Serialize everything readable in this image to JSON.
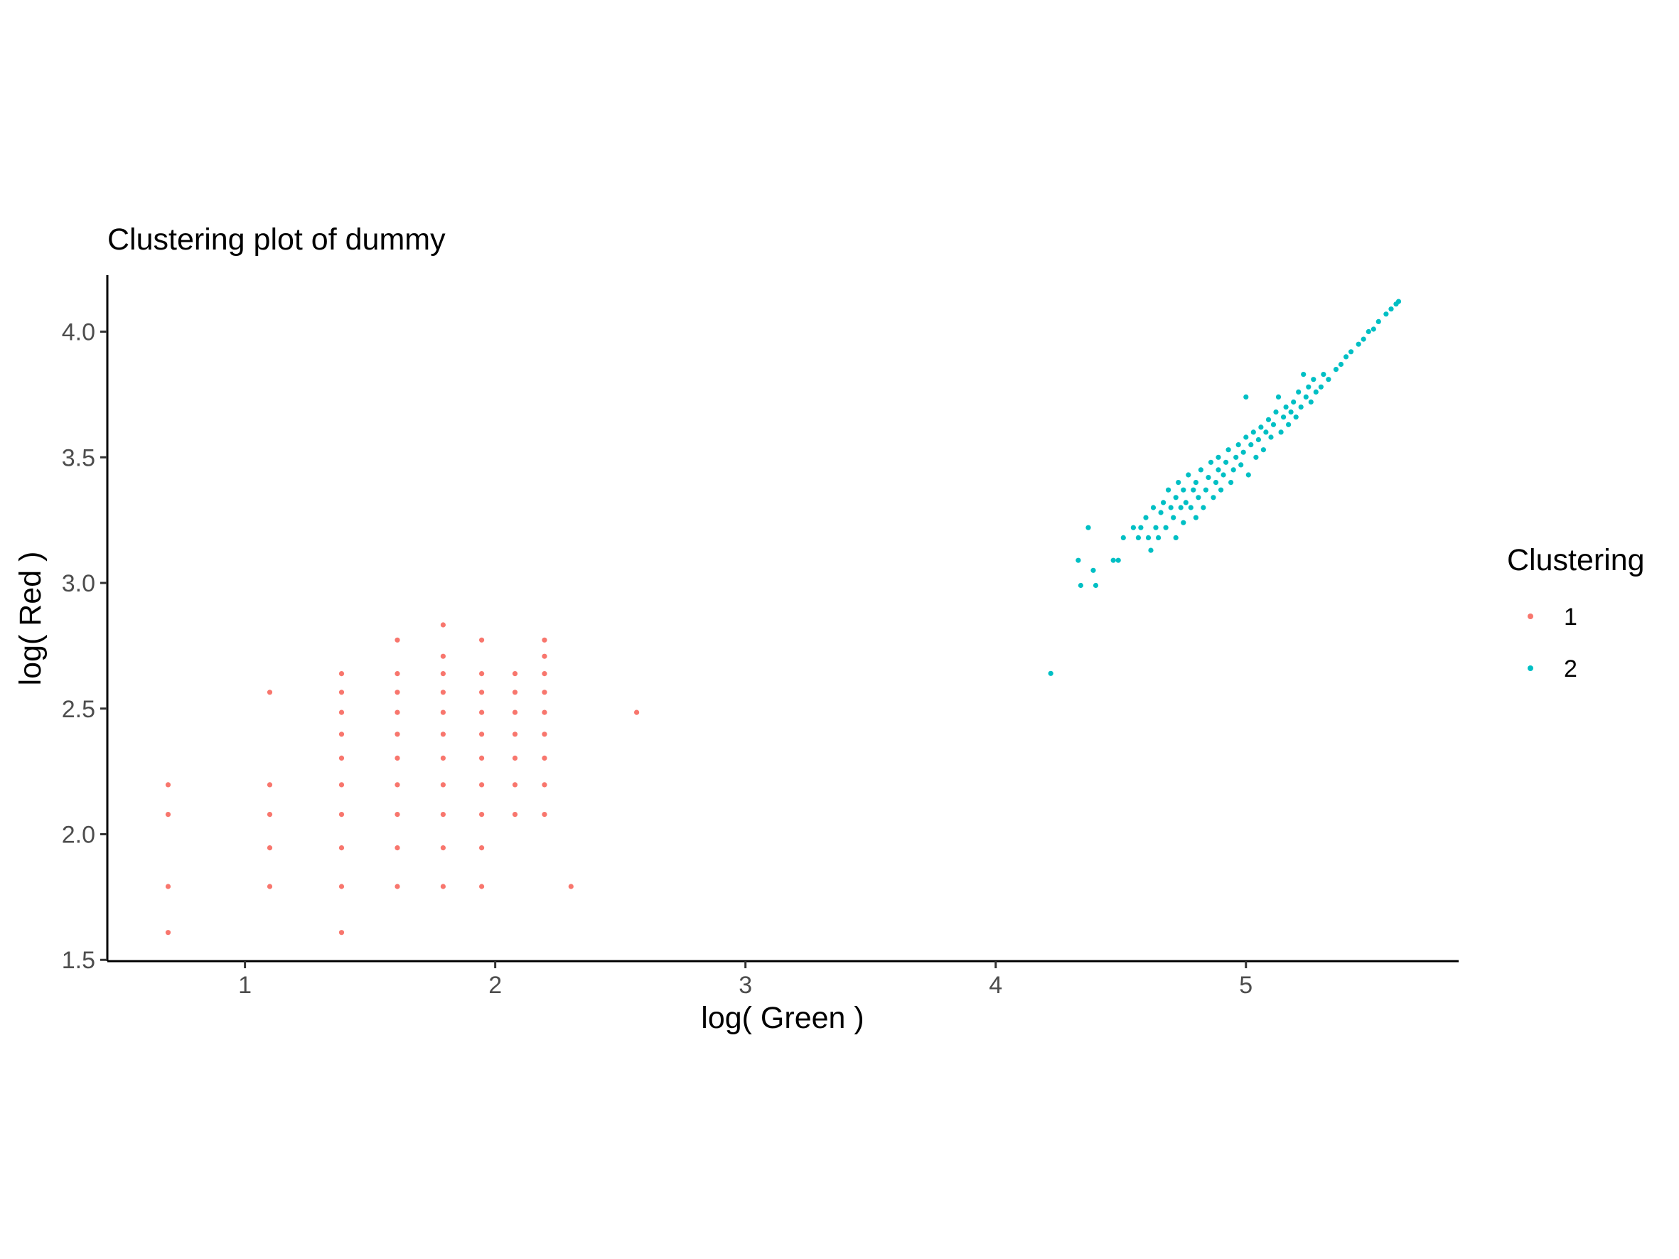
{
  "chart_data": {
    "type": "scatter",
    "title": "Clustering plot of dummy",
    "xlabel": "log( Green )",
    "ylabel": "log( Red )",
    "xlim": [
      0.45,
      5.85
    ],
    "ylim": [
      1.495,
      4.225
    ],
    "xticks": [
      1,
      2,
      3,
      4,
      5
    ],
    "xtick_labels": [
      "1",
      "2",
      "3",
      "4",
      "5"
    ],
    "yticks": [
      1.5,
      2.0,
      2.5,
      3.0,
      3.5,
      4.0
    ],
    "ytick_labels": [
      "1.5",
      "2.0",
      "2.5",
      "3.0",
      "3.5",
      "4.0"
    ],
    "grid": false,
    "legend": {
      "title": "Clustering",
      "position": "right"
    },
    "series": [
      {
        "name": "1",
        "color": "#F8766D",
        "points": [
          [
            0.693,
            1.609
          ],
          [
            0.693,
            1.792
          ],
          [
            0.693,
            2.079
          ],
          [
            0.693,
            2.197
          ],
          [
            1.099,
            1.792
          ],
          [
            1.099,
            1.946
          ],
          [
            1.099,
            2.079
          ],
          [
            1.099,
            2.197
          ],
          [
            1.099,
            2.565
          ],
          [
            1.386,
            1.609
          ],
          [
            1.386,
            1.792
          ],
          [
            1.386,
            1.946
          ],
          [
            1.386,
            2.079
          ],
          [
            1.386,
            2.197
          ],
          [
            1.386,
            2.303
          ],
          [
            1.386,
            2.398
          ],
          [
            1.386,
            2.485
          ],
          [
            1.386,
            2.565
          ],
          [
            1.386,
            2.639
          ],
          [
            1.609,
            1.792
          ],
          [
            1.609,
            1.946
          ],
          [
            1.609,
            2.079
          ],
          [
            1.609,
            2.197
          ],
          [
            1.609,
            2.303
          ],
          [
            1.609,
            2.398
          ],
          [
            1.609,
            2.485
          ],
          [
            1.609,
            2.565
          ],
          [
            1.609,
            2.639
          ],
          [
            1.609,
            2.773
          ],
          [
            1.792,
            1.792
          ],
          [
            1.792,
            1.946
          ],
          [
            1.792,
            2.079
          ],
          [
            1.792,
            2.197
          ],
          [
            1.792,
            2.303
          ],
          [
            1.792,
            2.398
          ],
          [
            1.792,
            2.485
          ],
          [
            1.792,
            2.565
          ],
          [
            1.792,
            2.639
          ],
          [
            1.792,
            2.708
          ],
          [
            1.792,
            2.833
          ],
          [
            1.946,
            1.792
          ],
          [
            1.946,
            1.946
          ],
          [
            1.946,
            2.079
          ],
          [
            1.946,
            2.197
          ],
          [
            1.946,
            2.303
          ],
          [
            1.946,
            2.398
          ],
          [
            1.946,
            2.485
          ],
          [
            1.946,
            2.565
          ],
          [
            1.946,
            2.639
          ],
          [
            1.946,
            2.773
          ],
          [
            2.079,
            2.079
          ],
          [
            2.079,
            2.197
          ],
          [
            2.079,
            2.303
          ],
          [
            2.079,
            2.398
          ],
          [
            2.079,
            2.485
          ],
          [
            2.079,
            2.565
          ],
          [
            2.079,
            2.639
          ],
          [
            2.197,
            2.079
          ],
          [
            2.197,
            2.197
          ],
          [
            2.197,
            2.303
          ],
          [
            2.197,
            2.398
          ],
          [
            2.197,
            2.485
          ],
          [
            2.197,
            2.565
          ],
          [
            2.197,
            2.639
          ],
          [
            2.197,
            2.708
          ],
          [
            2.197,
            2.773
          ],
          [
            2.303,
            1.792
          ],
          [
            2.565,
            2.485
          ]
        ]
      },
      {
        "name": "2",
        "color": "#00BFC4",
        "points": [
          [
            4.22,
            2.64
          ],
          [
            4.33,
            3.09
          ],
          [
            4.34,
            2.99
          ],
          [
            4.37,
            3.22
          ],
          [
            4.39,
            3.05
          ],
          [
            4.4,
            2.99
          ],
          [
            4.47,
            3.09
          ],
          [
            4.49,
            3.09
          ],
          [
            4.51,
            3.18
          ],
          [
            4.55,
            3.22
          ],
          [
            4.57,
            3.18
          ],
          [
            4.58,
            3.22
          ],
          [
            4.6,
            3.26
          ],
          [
            4.61,
            3.18
          ],
          [
            4.62,
            3.13
          ],
          [
            4.63,
            3.3
          ],
          [
            4.64,
            3.22
          ],
          [
            4.65,
            3.18
          ],
          [
            4.66,
            3.28
          ],
          [
            4.67,
            3.32
          ],
          [
            4.68,
            3.22
          ],
          [
            4.69,
            3.37
          ],
          [
            4.7,
            3.3
          ],
          [
            4.71,
            3.26
          ],
          [
            4.72,
            3.34
          ],
          [
            4.72,
            3.18
          ],
          [
            4.73,
            3.4
          ],
          [
            4.74,
            3.3
          ],
          [
            4.75,
            3.24
          ],
          [
            4.75,
            3.37
          ],
          [
            4.76,
            3.32
          ],
          [
            4.77,
            3.43
          ],
          [
            4.78,
            3.3
          ],
          [
            4.79,
            3.37
          ],
          [
            4.8,
            3.26
          ],
          [
            4.8,
            3.4
          ],
          [
            4.81,
            3.34
          ],
          [
            4.82,
            3.45
          ],
          [
            4.83,
            3.3
          ],
          [
            4.84,
            3.37
          ],
          [
            4.85,
            3.42
          ],
          [
            4.86,
            3.48
          ],
          [
            4.87,
            3.34
          ],
          [
            4.88,
            3.4
          ],
          [
            4.89,
            3.45
          ],
          [
            4.89,
            3.5
          ],
          [
            4.9,
            3.37
          ],
          [
            4.91,
            3.43
          ],
          [
            4.92,
            3.48
          ],
          [
            4.93,
            3.53
          ],
          [
            4.94,
            3.4
          ],
          [
            4.95,
            3.45
          ],
          [
            4.96,
            3.5
          ],
          [
            4.97,
            3.55
          ],
          [
            4.98,
            3.47
          ],
          [
            4.99,
            3.52
          ],
          [
            5.0,
            3.58
          ],
          [
            5.0,
            3.74
          ],
          [
            5.01,
            3.43
          ],
          [
            5.02,
            3.55
          ],
          [
            5.03,
            3.6
          ],
          [
            5.04,
            3.5
          ],
          [
            5.05,
            3.57
          ],
          [
            5.06,
            3.62
          ],
          [
            5.07,
            3.53
          ],
          [
            5.08,
            3.6
          ],
          [
            5.09,
            3.65
          ],
          [
            5.1,
            3.58
          ],
          [
            5.11,
            3.63
          ],
          [
            5.12,
            3.68
          ],
          [
            5.13,
            3.74
          ],
          [
            5.14,
            3.6
          ],
          [
            5.15,
            3.66
          ],
          [
            5.16,
            3.7
          ],
          [
            5.17,
            3.63
          ],
          [
            5.18,
            3.68
          ],
          [
            5.19,
            3.72
          ],
          [
            5.2,
            3.66
          ],
          [
            5.21,
            3.76
          ],
          [
            5.22,
            3.7
          ],
          [
            5.23,
            3.83
          ],
          [
            5.24,
            3.74
          ],
          [
            5.25,
            3.78
          ],
          [
            5.26,
            3.72
          ],
          [
            5.27,
            3.81
          ],
          [
            5.28,
            3.76
          ],
          [
            5.3,
            3.78
          ],
          [
            5.31,
            3.83
          ],
          [
            5.33,
            3.81
          ],
          [
            5.36,
            3.85
          ],
          [
            5.38,
            3.87
          ],
          [
            5.4,
            3.9
          ],
          [
            5.42,
            3.92
          ],
          [
            5.45,
            3.95
          ],
          [
            5.47,
            3.97
          ],
          [
            5.49,
            4.0
          ],
          [
            5.51,
            4.01
          ],
          [
            5.53,
            4.04
          ],
          [
            5.56,
            4.07
          ],
          [
            5.58,
            4.09
          ],
          [
            5.6,
            4.11
          ],
          [
            5.61,
            4.12
          ]
        ]
      }
    ]
  }
}
